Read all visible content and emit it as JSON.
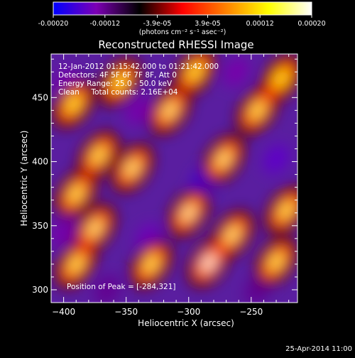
{
  "colorbar": {
    "tick_labels": [
      "-0.00020",
      "-0.00012",
      "-3.9e-05",
      "3.9e-05",
      "0.00012",
      "0.00020"
    ],
    "tick_values": [
      -0.0002,
      -0.00012,
      -3.9e-05,
      3.9e-05,
      0.00012,
      0.0002
    ],
    "range": [
      -0.0002,
      0.0002
    ],
    "unit_label": "(photons cm⁻² s⁻¹ asec⁻²)",
    "colormap": [
      "#0000ff",
      "#7d00b4",
      "#000000",
      "#ff0000",
      "#ff8000",
      "#ffff00",
      "#ffffff"
    ]
  },
  "title": "Reconstructed RHESSI Image",
  "info_lines": [
    "12-Jan-2012 01:15:42.000 to 01:21:42.000",
    "Detectors: 4F 5F 6F 7F 8F, Att 0",
    "Energy Range: 25.0 - 50.0 keV",
    "Clean     Total counts: 2.16E+04"
  ],
  "peak_label": "Position of Peak = [-284,321]",
  "footer_date": "25-Apr-2014 11:00",
  "chart_data": {
    "type": "heatmap",
    "title": "Reconstructed RHESSI Image",
    "xlabel": "Heliocentric X (arcsec)",
    "ylabel": "Heliocentric Y (arcsec)",
    "xlim": [
      -410,
      -213
    ],
    "ylim": [
      290,
      484
    ],
    "x_ticks": [
      -400,
      -350,
      -300,
      -250
    ],
    "y_ticks": [
      300,
      350,
      400,
      450
    ],
    "x_tick_labels": [
      "−400",
      "−350",
      "−300",
      "−250"
    ],
    "y_tick_labels": [
      "300",
      "350",
      "400",
      "450"
    ],
    "peak_position": [
      -284,
      321
    ],
    "bright_blobs": [
      {
        "x": -390,
        "y": 320,
        "value": 0.00016
      },
      {
        "x": -375,
        "y": 348,
        "value": 0.00017
      },
      {
        "x": -390,
        "y": 375,
        "value": 0.00016
      },
      {
        "x": -372,
        "y": 405,
        "value": 0.00016
      },
      {
        "x": -392,
        "y": 445,
        "value": 0.00015
      },
      {
        "x": -355,
        "y": 462,
        "value": 0.00015
      },
      {
        "x": -330,
        "y": 320,
        "value": 0.00016
      },
      {
        "x": -345,
        "y": 395,
        "value": 0.00017
      },
      {
        "x": -315,
        "y": 440,
        "value": 0.00017
      },
      {
        "x": -295,
        "y": 470,
        "value": 0.00015
      },
      {
        "x": -300,
        "y": 360,
        "value": 0.00018
      },
      {
        "x": -284,
        "y": 321,
        "value": 0.0002
      },
      {
        "x": -265,
        "y": 343,
        "value": 0.00017
      },
      {
        "x": -272,
        "y": 402,
        "value": 0.00017
      },
      {
        "x": -245,
        "y": 440,
        "value": 0.00016
      },
      {
        "x": -226,
        "y": 465,
        "value": 0.00014
      },
      {
        "x": -230,
        "y": 322,
        "value": 0.00016
      },
      {
        "x": -222,
        "y": 362,
        "value": 0.00016
      }
    ],
    "dark_blobs": [
      {
        "x": -398,
        "y": 462,
        "value": -0.00013
      },
      {
        "x": -340,
        "y": 440,
        "value": -0.00013
      },
      {
        "x": -332,
        "y": 340,
        "value": -0.00014
      },
      {
        "x": -288,
        "y": 385,
        "value": -0.00016
      },
      {
        "x": -230,
        "y": 402,
        "value": -0.00015
      },
      {
        "x": -245,
        "y": 300,
        "value": -0.00012
      },
      {
        "x": -365,
        "y": 300,
        "value": -0.00012
      },
      {
        "x": -400,
        "y": 345,
        "value": -0.00013
      },
      {
        "x": -262,
        "y": 470,
        "value": -0.00013
      }
    ]
  }
}
